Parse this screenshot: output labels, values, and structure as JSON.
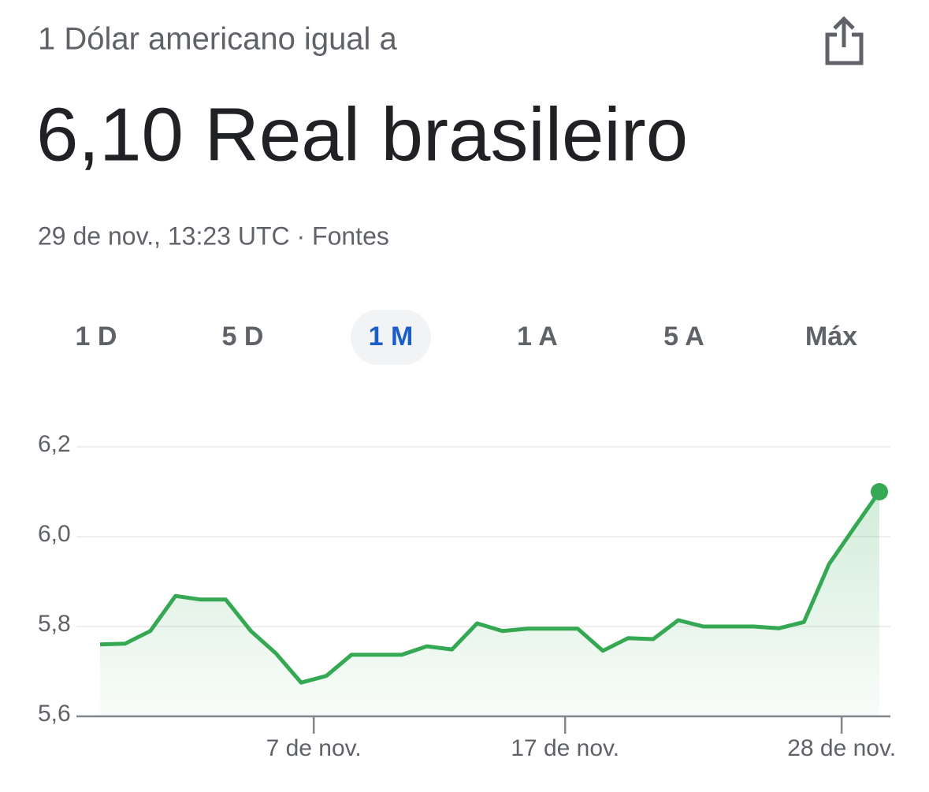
{
  "header": {
    "subtitle": "1 Dólar americano igual a",
    "value_text": "6,10 Real brasileiro",
    "timestamp": "29 de nov., 13:23 UTC · Fontes"
  },
  "tabs": [
    "1 D",
    "5 D",
    "1 M",
    "1 A",
    "5 A",
    "Máx"
  ],
  "selected_tab": 2,
  "chart_data": {
    "type": "area",
    "color": "#34a853",
    "x": [
      0,
      1,
      2,
      3,
      4,
      5,
      6,
      7,
      8,
      9,
      10,
      11,
      12,
      13,
      14,
      15,
      16,
      17,
      18,
      19,
      20,
      21,
      22,
      23,
      24,
      25,
      26,
      27,
      28,
      29,
      30,
      31
    ],
    "values": [
      5.76,
      5.762,
      5.79,
      5.868,
      5.86,
      5.86,
      5.79,
      5.74,
      5.675,
      5.69,
      5.737,
      5.737,
      5.737,
      5.756,
      5.749,
      5.807,
      5.79,
      5.795,
      5.795,
      5.795,
      5.746,
      5.774,
      5.772,
      5.814,
      5.8,
      5.8,
      5.8,
      5.796,
      5.81,
      5.939,
      6.02,
      6.1
    ],
    "xlim": [
      0,
      31
    ],
    "xticks": [
      {
        "value": 8.5,
        "label": "7 de nov."
      },
      {
        "value": 18.5,
        "label": "17 de nov."
      },
      {
        "value": 29.5,
        "label": "28 de nov."
      }
    ],
    "ylim": [
      5.6,
      6.2
    ],
    "yticks": [
      {
        "value": 5.6,
        "label": "5,6"
      },
      {
        "value": 5.8,
        "label": "5,8"
      },
      {
        "value": 6.0,
        "label": "6,0"
      },
      {
        "value": 6.2,
        "label": "6,2"
      }
    ],
    "grid": true
  }
}
